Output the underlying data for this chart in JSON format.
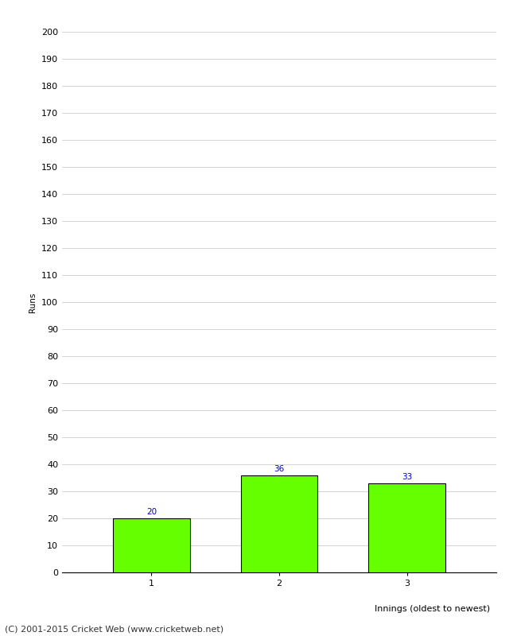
{
  "categories": [
    "1",
    "2",
    "3"
  ],
  "values": [
    20,
    36,
    33
  ],
  "bar_color": "#66ff00",
  "bar_edge_color": "#000000",
  "xlabel": "Innings (oldest to newest)",
  "ylabel": "Runs",
  "ylim": [
    0,
    200
  ],
  "ytick_step": 10,
  "label_color": "#0000cc",
  "label_fontsize": 7.5,
  "xlabel_fontsize": 8,
  "ylabel_fontsize": 7.5,
  "tick_fontsize": 8,
  "footer": "(C) 2001-2015 Cricket Web (www.cricketweb.net)",
  "footer_fontsize": 8,
  "background_color": "#ffffff",
  "grid_color": "#cccccc",
  "bar_width": 0.6
}
